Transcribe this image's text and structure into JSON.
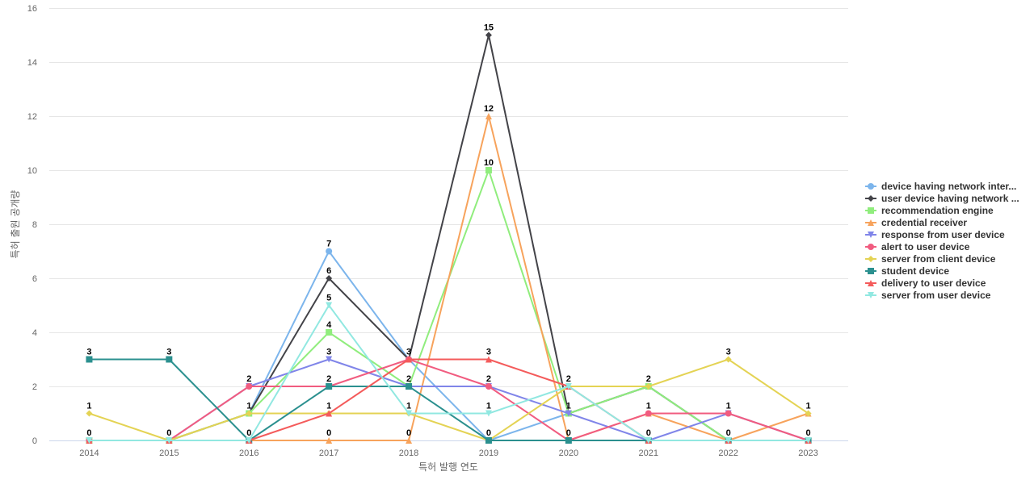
{
  "chart_data": {
    "type": "line",
    "xlabel": "특허 발행 연도",
    "ylabel": "특허 출원 공개량",
    "ylim": [
      0,
      16
    ],
    "yticks": [
      0,
      2,
      4,
      6,
      8,
      10,
      12,
      14,
      16
    ],
    "grid": true,
    "legend_position": "right",
    "categories": [
      "2014",
      "2015",
      "2016",
      "2017",
      "2018",
      "2019",
      "2020",
      "2021",
      "2022",
      "2023"
    ],
    "series": [
      {
        "name": "device having network inter...",
        "color": "#7cb5ec",
        "marker": "circle",
        "values": [
          0,
          0,
          1,
          7,
          3,
          0,
          1,
          2,
          0,
          0
        ]
      },
      {
        "name": "user device having network ...",
        "color": "#434348",
        "marker": "diamond",
        "values": [
          0,
          0,
          1,
          6,
          3,
          15,
          1,
          2,
          0,
          0
        ]
      },
      {
        "name": "recommendation engine",
        "color": "#90ed7d",
        "marker": "square",
        "values": [
          0,
          0,
          1,
          4,
          2,
          10,
          1,
          2,
          0,
          0
        ]
      },
      {
        "name": "credential receiver",
        "color": "#f7a35c",
        "marker": "triangle",
        "values": [
          0,
          0,
          0,
          0,
          0,
          12,
          0,
          1,
          0,
          1
        ]
      },
      {
        "name": "response from user device",
        "color": "#8085e9",
        "marker": "triangle-down",
        "values": [
          0,
          0,
          2,
          3,
          2,
          2,
          1,
          0,
          1,
          0
        ]
      },
      {
        "name": "alert to user device",
        "color": "#f15c80",
        "marker": "circle",
        "values": [
          0,
          0,
          2,
          2,
          3,
          2,
          0,
          1,
          1,
          0
        ]
      },
      {
        "name": "server from client device",
        "color": "#e4d354",
        "marker": "diamond",
        "values": [
          1,
          0,
          1,
          1,
          1,
          0,
          2,
          2,
          3,
          1
        ]
      },
      {
        "name": "student device",
        "color": "#2b908f",
        "marker": "square",
        "values": [
          3,
          3,
          0,
          2,
          2,
          0,
          0,
          0,
          0,
          0
        ]
      },
      {
        "name": "delivery to user device",
        "color": "#f45b5b",
        "marker": "triangle",
        "values": [
          0,
          0,
          0,
          1,
          3,
          3,
          2,
          0,
          0,
          0
        ]
      },
      {
        "name": "server from user device",
        "color": "#91e8e1",
        "marker": "triangle-down",
        "values": [
          0,
          0,
          0,
          5,
          1,
          1,
          2,
          0,
          0,
          0
        ]
      }
    ],
    "data_labels": [
      {
        "x": "2014",
        "text": "3",
        "series": 7
      },
      {
        "x": "2014",
        "text": "1",
        "series": 6
      },
      {
        "x": "2014",
        "text": "0",
        "series": 0
      },
      {
        "x": "2015",
        "text": "3",
        "series": 7
      },
      {
        "x": "2015",
        "text": "0",
        "series": 0
      },
      {
        "x": "2016",
        "text": "2",
        "series": 4
      },
      {
        "x": "2016",
        "text": "1",
        "series": 0
      },
      {
        "x": "2016",
        "text": "0",
        "series": 7
      },
      {
        "x": "2017",
        "text": "7",
        "series": 0
      },
      {
        "x": "2017",
        "text": "6",
        "series": 1
      },
      {
        "x": "2017",
        "text": "5",
        "series": 9
      },
      {
        "x": "2017",
        "text": "4",
        "series": 2
      },
      {
        "x": "2017",
        "text": "3",
        "series": 4
      },
      {
        "x": "2017",
        "text": "2",
        "series": 5
      },
      {
        "x": "2017",
        "text": "1",
        "series": 6
      },
      {
        "x": "2017",
        "text": "0",
        "series": 3
      },
      {
        "x": "2018",
        "text": "3",
        "series": 0
      },
      {
        "x": "2018",
        "text": "2",
        "series": 2
      },
      {
        "x": "2018",
        "text": "1",
        "series": 6
      },
      {
        "x": "2018",
        "text": "0",
        "series": 3
      },
      {
        "x": "2019",
        "text": "15",
        "series": 1
      },
      {
        "x": "2019",
        "text": "12",
        "series": 3
      },
      {
        "x": "2019",
        "text": "10",
        "series": 2
      },
      {
        "x": "2019",
        "text": "3",
        "series": 8
      },
      {
        "x": "2019",
        "text": "2",
        "series": 4
      },
      {
        "x": "2019",
        "text": "1",
        "series": 9
      },
      {
        "x": "2019",
        "text": "0",
        "series": 0
      },
      {
        "x": "2020",
        "text": "2",
        "series": 6
      },
      {
        "x": "2020",
        "text": "1",
        "series": 0
      },
      {
        "x": "2020",
        "text": "0",
        "series": 3
      },
      {
        "x": "2021",
        "text": "2",
        "series": 0
      },
      {
        "x": "2021",
        "text": "1",
        "series": 3
      },
      {
        "x": "2021",
        "text": "0",
        "series": 4
      },
      {
        "x": "2022",
        "text": "3",
        "series": 6
      },
      {
        "x": "2022",
        "text": "1",
        "series": 4
      },
      {
        "x": "2022",
        "text": "0",
        "series": 0
      },
      {
        "x": "2023",
        "text": "1",
        "series": 3
      },
      {
        "x": "2023",
        "text": "0",
        "series": 0
      }
    ]
  }
}
